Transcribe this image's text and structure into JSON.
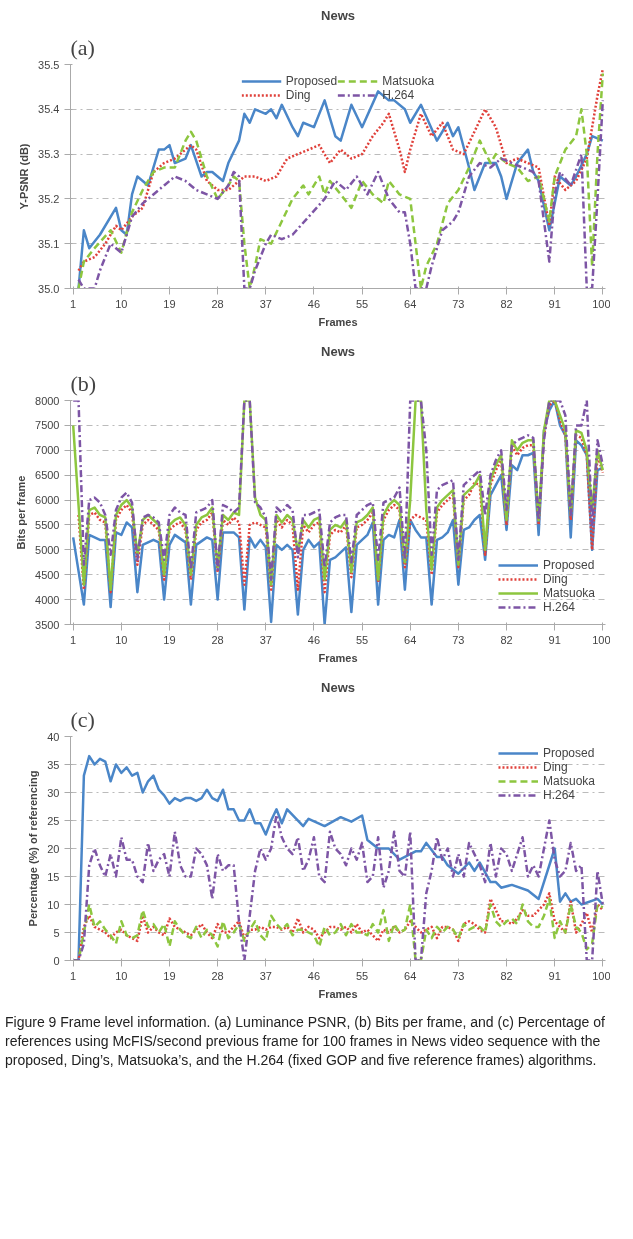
{
  "chart_data": [
    {
      "type": "line",
      "title": "News",
      "xlabel": "Frames",
      "ylabel": "Y-PSNR (dB)",
      "annotations": [
        "(a)"
      ],
      "xlim": [
        0.5,
        100.5
      ],
      "xticks": [
        1,
        10,
        19,
        28,
        37,
        46,
        55,
        64,
        73,
        82,
        91,
        100
      ],
      "ylim": [
        35.0,
        35.5
      ],
      "yticks": [
        {
          "value": 35.0,
          "label": "35.0"
        },
        35.1,
        35.2,
        35.3,
        35.4,
        35.5
      ],
      "grid": "y",
      "legend": "top",
      "series": [
        {
          "name": "Proposed",
          "color": "#4a86c8",
          "line_style": "solid",
          "x": [
            2,
            3,
            4,
            6,
            9,
            10,
            11,
            12,
            13,
            15,
            17,
            18,
            19,
            20,
            22,
            23,
            25,
            26,
            27,
            29,
            30,
            32,
            33,
            34,
            35,
            37,
            38,
            39,
            40,
            42,
            43,
            44,
            46,
            48,
            50,
            51,
            53,
            55,
            58,
            60,
            61,
            63,
            64,
            66,
            69,
            71,
            72,
            73,
            75,
            76,
            78,
            80,
            81,
            82,
            84,
            86,
            87,
            88,
            90,
            92,
            93,
            94,
            95,
            97,
            98,
            100
          ],
          "values": [
            35.0,
            35.13,
            35.09,
            35.12,
            35.18,
            35.13,
            35.12,
            35.21,
            35.25,
            35.23,
            35.31,
            35.31,
            35.32,
            35.28,
            35.29,
            35.32,
            35.25,
            35.26,
            35.26,
            35.24,
            35.28,
            35.33,
            35.39,
            35.37,
            35.4,
            35.39,
            35.4,
            35.38,
            35.41,
            35.36,
            35.34,
            35.37,
            35.36,
            35.42,
            35.34,
            35.33,
            35.41,
            35.36,
            35.44,
            35.42,
            35.42,
            35.4,
            35.37,
            35.41,
            35.33,
            35.37,
            35.34,
            35.36,
            35.27,
            35.22,
            35.28,
            35.28,
            35.25,
            35.2,
            35.28,
            35.31,
            35.26,
            35.24,
            35.13,
            35.25,
            35.24,
            35.23,
            35.25,
            35.3,
            35.34,
            35.33
          ]
        },
        {
          "name": "Ding",
          "color": "#e0403a",
          "line_style": "dotted",
          "x": [
            2,
            3,
            5,
            7,
            9,
            10,
            12,
            14,
            16,
            18,
            20,
            22,
            23,
            24,
            26,
            28,
            30,
            32,
            33,
            35,
            37,
            39,
            41,
            43,
            45,
            47,
            49,
            51,
            53,
            55,
            57,
            59,
            60,
            62,
            63,
            64,
            66,
            68,
            70,
            72,
            74,
            76,
            78,
            80,
            82,
            84,
            86,
            88,
            90,
            91,
            93,
            95,
            97,
            99,
            100
          ],
          "values": [
            35.04,
            35.06,
            35.07,
            35.1,
            35.14,
            35.13,
            35.16,
            35.18,
            35.26,
            35.28,
            35.29,
            35.31,
            35.32,
            35.31,
            35.24,
            35.22,
            35.22,
            35.24,
            35.25,
            35.25,
            35.24,
            35.25,
            35.29,
            35.3,
            35.31,
            35.32,
            35.28,
            35.31,
            35.29,
            35.3,
            35.34,
            35.37,
            35.39,
            35.31,
            35.26,
            35.31,
            35.39,
            35.34,
            35.37,
            35.31,
            35.3,
            35.35,
            35.4,
            35.36,
            35.28,
            35.29,
            35.28,
            35.27,
            35.14,
            35.25,
            35.22,
            35.24,
            35.29,
            35.43,
            35.49
          ]
        },
        {
          "name": "Matsuoka",
          "color": "#8dc63f",
          "line_style": "dashed",
          "x": [
            2,
            3,
            5,
            8,
            10,
            12,
            14,
            16,
            18,
            20,
            22,
            23,
            24,
            26,
            28,
            30,
            31,
            32,
            33,
            34,
            35,
            36,
            38,
            40,
            42,
            44,
            45,
            47,
            48,
            49,
            51,
            53,
            55,
            57,
            59,
            60,
            62,
            64,
            65,
            66,
            67,
            69,
            71,
            73,
            75,
            77,
            79,
            80,
            82,
            84,
            86,
            88,
            90,
            91,
            93,
            95,
            96,
            97,
            98,
            99,
            100
          ],
          "values": [
            35.0,
            35.06,
            35.09,
            35.13,
            35.08,
            35.17,
            35.22,
            35.26,
            35.27,
            35.27,
            35.33,
            35.35,
            35.33,
            35.25,
            35.2,
            35.23,
            35.25,
            35.24,
            35.1,
            35.0,
            35.05,
            35.11,
            35.1,
            35.15,
            35.2,
            35.23,
            35.21,
            35.25,
            35.21,
            35.24,
            35.21,
            35.18,
            35.24,
            35.21,
            35.19,
            35.24,
            35.21,
            35.2,
            35.1,
            35.0,
            35.05,
            35.1,
            35.19,
            35.22,
            35.27,
            35.33,
            35.28,
            35.3,
            35.28,
            35.27,
            35.24,
            35.25,
            35.15,
            35.25,
            35.31,
            35.34,
            35.4,
            35.3,
            35.05,
            35.3,
            35.48
          ]
        },
        {
          "name": "H.264",
          "color": "#7d55a5",
          "line_style": "dashdot",
          "x": [
            2,
            3,
            5,
            6,
            8,
            10,
            12,
            14,
            16,
            18,
            19,
            20,
            22,
            24,
            26,
            28,
            30,
            31,
            32,
            33,
            34,
            35,
            37,
            38,
            40,
            42,
            45,
            48,
            50,
            52,
            54,
            56,
            58,
            60,
            62,
            63,
            64,
            65,
            67,
            68,
            70,
            72,
            73,
            75,
            77,
            79,
            81,
            83,
            85,
            87,
            88,
            89,
            90,
            91,
            92,
            94,
            96,
            97,
            98,
            99,
            100
          ],
          "values": [
            35.02,
            35.0,
            35.0,
            35.04,
            35.1,
            35.08,
            35.16,
            35.19,
            35.21,
            35.23,
            35.24,
            35.25,
            35.24,
            35.22,
            35.21,
            35.2,
            35.23,
            35.26,
            35.25,
            35.0,
            35.0,
            35.04,
            35.1,
            35.12,
            35.11,
            35.12,
            35.16,
            35.2,
            35.24,
            35.22,
            35.25,
            35.21,
            35.26,
            35.2,
            35.17,
            35.17,
            35.1,
            35.0,
            35.0,
            35.05,
            35.13,
            35.15,
            35.17,
            35.25,
            35.28,
            35.27,
            35.29,
            35.28,
            35.27,
            35.26,
            35.24,
            35.15,
            35.06,
            35.21,
            35.26,
            35.23,
            35.3,
            35.0,
            35.0,
            35.2,
            35.42
          ]
        }
      ]
    },
    {
      "type": "line",
      "title": "News",
      "xlabel": "Frames",
      "ylabel": "Bits per frame",
      "annotations": [
        "(b)"
      ],
      "xlim": [
        0.5,
        100.5
      ],
      "xticks": [
        1,
        10,
        19,
        28,
        37,
        46,
        55,
        64,
        73,
        82,
        91,
        100
      ],
      "ylim": [
        3500,
        8000
      ],
      "yticks": [
        3500,
        4000,
        4500,
        5000,
        5500,
        6000,
        6500,
        7000,
        7500,
        8000
      ],
      "grid": "y",
      "legend": "bottom right",
      "series": [
        {
          "name": "Proposed",
          "color": "#4a86c8",
          "line_style": "solid",
          "x": [
            1,
            3,
            4,
            6,
            7,
            8,
            9,
            10,
            11,
            12,
            13,
            14,
            16,
            17,
            18,
            19,
            20,
            22,
            23,
            24,
            26,
            27,
            28,
            29,
            31,
            32,
            33,
            34,
            35,
            36,
            37,
            38,
            39,
            40,
            41,
            42,
            43,
            44,
            45,
            46,
            47,
            48,
            49,
            50,
            52,
            53,
            54,
            55,
            56,
            57,
            58,
            59,
            60,
            61,
            62,
            63,
            64,
            65,
            66,
            67,
            68,
            69,
            70,
            71,
            72,
            73,
            74,
            75,
            76,
            77,
            78,
            79,
            80,
            81,
            82,
            83,
            84,
            85,
            86,
            87,
            88,
            89,
            90,
            91,
            92,
            93,
            94,
            95,
            96,
            97,
            98,
            99,
            100
          ],
          "values": [
            5250,
            3900,
            5300,
            5200,
            5200,
            3850,
            5350,
            5300,
            5550,
            5450,
            4150,
            5100,
            5200,
            5150,
            4000,
            5100,
            5300,
            5150,
            3900,
            5100,
            5250,
            5200,
            4000,
            5350,
            5350,
            5250,
            3800,
            5250,
            5050,
            5200,
            5050,
            3550,
            5100,
            5000,
            5100,
            5000,
            3700,
            5000,
            5200,
            5050,
            5150,
            3500,
            4800,
            4850,
            5050,
            3750,
            5100,
            5200,
            5300,
            5550,
            3900,
            5200,
            5300,
            5250,
            5600,
            4200,
            5600,
            5400,
            5250,
            5250,
            3900,
            5200,
            5250,
            5350,
            5600,
            4300,
            5400,
            5450,
            5600,
            5700,
            4800,
            6100,
            6300,
            6500,
            5400,
            6700,
            6600,
            6900,
            6900,
            6950,
            5300,
            7400,
            7800,
            8000,
            7500,
            7300,
            5250,
            7200,
            7100,
            6900,
            5000,
            6600,
            6650
          ]
        },
        {
          "name": "Ding",
          "color": "#e0403a",
          "line_style": "dotted",
          "x": [
            2,
            3,
            4,
            5,
            6,
            7,
            8,
            9,
            10,
            11,
            12,
            13,
            14,
            15,
            16,
            17,
            18,
            19,
            20,
            21,
            22,
            23,
            24,
            25,
            26,
            27,
            28,
            29,
            30,
            31,
            32,
            33,
            34,
            35,
            36,
            37,
            38,
            39,
            40,
            41,
            42,
            43,
            44,
            45,
            46,
            47,
            48,
            49,
            50,
            51,
            52,
            53,
            54,
            55,
            56,
            57,
            58,
            59,
            60,
            61,
            62,
            63,
            64,
            65,
            66,
            67,
            68,
            69,
            70,
            71,
            72,
            73,
            74,
            75,
            76,
            77,
            78,
            79,
            80,
            81,
            82,
            83,
            84,
            85,
            86,
            87,
            88,
            89,
            90,
            91,
            92,
            93,
            94,
            95,
            96,
            97,
            98,
            99,
            100
          ],
          "values": [
            5700,
            4200,
            5700,
            5750,
            5600,
            5550,
            4150,
            5600,
            5800,
            5900,
            5750,
            4700,
            5500,
            5600,
            5500,
            5400,
            4400,
            5400,
            5500,
            5550,
            5400,
            4400,
            5400,
            5550,
            5600,
            5750,
            4550,
            5600,
            5500,
            5650,
            5550,
            4300,
            5500,
            5550,
            5500,
            5450,
            4200,
            5600,
            5450,
            5600,
            5500,
            4200,
            5500,
            5350,
            5500,
            5550,
            4150,
            5300,
            5400,
            5350,
            5500,
            4450,
            5450,
            5500,
            5600,
            5750,
            4350,
            5600,
            5800,
            5900,
            5800,
            4650,
            5600,
            5700,
            5650,
            5600,
            4500,
            5750,
            5900,
            6000,
            6100,
            4650,
            6000,
            6100,
            6350,
            6300,
            4900,
            6300,
            6600,
            6800,
            5500,
            7100,
            6900,
            7050,
            7100,
            7100,
            5500,
            7300,
            7900,
            8000,
            7600,
            7300,
            5600,
            7300,
            7250,
            6900,
            5000,
            6900,
            6550
          ]
        },
        {
          "name": "Matsuoka",
          "color": "#8dc63f",
          "line_style": "solid",
          "x": [
            1,
            2,
            3,
            4,
            5,
            6,
            7,
            8,
            9,
            10,
            11,
            12,
            13,
            14,
            15,
            16,
            17,
            18,
            19,
            20,
            21,
            22,
            23,
            24,
            25,
            26,
            27,
            28,
            29,
            30,
            31,
            32,
            33,
            34,
            35,
            36,
            37,
            38,
            39,
            40,
            41,
            42,
            43,
            44,
            45,
            46,
            47,
            48,
            49,
            50,
            51,
            52,
            53,
            54,
            55,
            56,
            57,
            58,
            59,
            60,
            61,
            62,
            63,
            64,
            65,
            66,
            67,
            68,
            69,
            70,
            71,
            72,
            73,
            74,
            75,
            76,
            77,
            78,
            79,
            80,
            81,
            82,
            83,
            84,
            85,
            86,
            87,
            88,
            89,
            90,
            91,
            92,
            93,
            94,
            95,
            96,
            97,
            98,
            99,
            100
          ],
          "values": [
            7500,
            5900,
            4300,
            5800,
            5850,
            5700,
            5650,
            4200,
            5700,
            5900,
            6000,
            5850,
            4900,
            5600,
            5700,
            5600,
            5500,
            4500,
            5500,
            5600,
            5650,
            5500,
            4500,
            5500,
            5650,
            5700,
            5850,
            4650,
            5700,
            5600,
            5750,
            5700,
            8000,
            8000,
            6050,
            5700,
            5600,
            4300,
            5700,
            5550,
            5700,
            5600,
            4950,
            5600,
            5450,
            5600,
            5650,
            4400,
            5400,
            5500,
            5450,
            5600,
            4550,
            5550,
            5600,
            5700,
            5850,
            4400,
            5700,
            5900,
            6000,
            5900,
            4750,
            6000,
            8000,
            8000,
            5800,
            4600,
            5850,
            6000,
            6100,
            6200,
            4700,
            6100,
            6200,
            6300,
            6500,
            5000,
            6400,
            6700,
            6900,
            5600,
            7200,
            7000,
            7150,
            7200,
            7200,
            5600,
            7400,
            8000,
            8000,
            7700,
            7400,
            5700,
            7400,
            7350,
            7000,
            5800,
            7000,
            6600
          ]
        },
        {
          "name": "H.264",
          "color": "#7d55a5",
          "line_style": "dashdot",
          "x": [
            1,
            2,
            3,
            4,
            5,
            6,
            7,
            8,
            9,
            10,
            11,
            12,
            13,
            14,
            15,
            16,
            17,
            18,
            19,
            20,
            21,
            22,
            23,
            24,
            25,
            26,
            27,
            28,
            29,
            30,
            31,
            32,
            33,
            34,
            35,
            36,
            37,
            38,
            39,
            40,
            41,
            42,
            43,
            44,
            45,
            46,
            47,
            48,
            49,
            50,
            51,
            52,
            53,
            54,
            55,
            56,
            57,
            58,
            59,
            60,
            61,
            62,
            63,
            64,
            65,
            66,
            67,
            68,
            69,
            70,
            71,
            72,
            73,
            74,
            75,
            76,
            77,
            78,
            79,
            80,
            81,
            82,
            83,
            84,
            85,
            86,
            87,
            88,
            89,
            90,
            91,
            92,
            93,
            94,
            95,
            96,
            97,
            98,
            99,
            100
          ],
          "values": [
            8000,
            8000,
            4700,
            6000,
            6050,
            5950,
            5700,
            4900,
            5800,
            6050,
            6150,
            5950,
            4800,
            5650,
            5700,
            5650,
            5550,
            4800,
            5700,
            5850,
            5750,
            5700,
            4600,
            5750,
            5800,
            5850,
            6000,
            4600,
            5900,
            5850,
            5750,
            5850,
            8000,
            8000,
            5950,
            5850,
            5650,
            4400,
            5850,
            5750,
            5900,
            5800,
            4850,
            5700,
            5700,
            5750,
            5800,
            4650,
            5550,
            5650,
            5700,
            5700,
            4750,
            5700,
            5800,
            5900,
            5950,
            4800,
            5950,
            6000,
            6050,
            6250,
            4800,
            8000,
            8000,
            8000,
            7000,
            4900,
            6200,
            6300,
            6350,
            6400,
            4800,
            6300,
            6400,
            6500,
            6600,
            5700,
            6500,
            6800,
            7000,
            5800,
            7100,
            7200,
            7250,
            7300,
            7250,
            5600,
            7200,
            8000,
            8000,
            8000,
            7700,
            5700,
            7500,
            7500,
            8000,
            5500,
            7200,
            6700
          ]
        }
      ]
    },
    {
      "type": "line",
      "title": "News",
      "xlabel": "Frames",
      "ylabel": "Percentage (%) of referencing",
      "annotations": [
        "(c)",
        "Figure 9 Frame level information. (a) Luminance PSNR, (b) Bits per frame, and (c) Percentage of references using McFIS/second previous frame for 100 frames in News video sequence with the proposed, Ding’s, Matsuoka’s, and the H.264 (fixed GOP and five reference frames) algorithms."
      ],
      "xlim": [
        0.5,
        100.5
      ],
      "xticks": [
        1,
        10,
        19,
        28,
        37,
        46,
        55,
        64,
        73,
        82,
        91,
        100
      ],
      "ylim": [
        0,
        40
      ],
      "yticks": [
        0,
        5,
        10,
        15,
        20,
        25,
        30,
        35,
        40
      ],
      "grid": "y",
      "legend": "top right",
      "series": [
        {
          "name": "Proposed",
          "color": "#4a86c8",
          "line_style": "solid",
          "x": [
            1,
            2,
            3,
            4,
            5,
            6,
            7,
            8,
            9,
            10,
            11,
            12,
            13,
            14,
            15,
            16,
            17,
            18,
            19,
            20,
            21,
            22,
            23,
            24,
            25,
            26,
            27,
            28,
            29,
            30,
            31,
            32,
            33,
            34,
            35,
            36,
            37,
            38,
            39,
            40,
            41,
            44,
            45,
            48,
            51,
            53,
            55,
            56,
            58,
            60,
            62,
            65,
            66,
            67,
            69,
            70,
            71,
            73,
            75,
            76,
            77,
            79,
            80,
            81,
            83,
            86,
            88,
            91,
            92,
            93,
            94,
            95,
            96,
            99,
            100
          ],
          "values": [
            0,
            0,
            33,
            36.5,
            35,
            36,
            35.5,
            32,
            35,
            33.5,
            34.5,
            33,
            33.5,
            30,
            32,
            33,
            30.5,
            29.5,
            28,
            29,
            28.5,
            29,
            29,
            28.5,
            29,
            30.5,
            29,
            28.5,
            30.5,
            27,
            27,
            25,
            25,
            27,
            24.5,
            24.5,
            22.5,
            25,
            27,
            24.5,
            27,
            24,
            25.3,
            24,
            25.6,
            24.8,
            25.9,
            21.5,
            20,
            20,
            18,
            19.5,
            19.5,
            21,
            18.5,
            18.5,
            17,
            15.5,
            17.5,
            16,
            17.5,
            14,
            14,
            13,
            13.5,
            12.5,
            11,
            20,
            10.5,
            12,
            10.5,
            11,
            10,
            11,
            10
          ]
        },
        {
          "name": "Ding",
          "color": "#e0403a",
          "line_style": "dotted",
          "x": [
            1,
            2,
            3,
            4,
            5,
            6,
            7,
            8,
            9,
            10,
            11,
            12,
            13,
            14,
            15,
            16,
            17,
            18,
            19,
            20,
            21,
            22,
            23,
            24,
            25,
            26,
            27,
            28,
            29,
            30,
            31,
            32,
            33,
            34,
            35,
            36,
            37,
            38,
            39,
            40,
            41,
            42,
            43,
            44,
            45,
            46,
            47,
            48,
            49,
            50,
            51,
            52,
            53,
            54,
            55,
            56,
            57,
            58,
            59,
            60,
            61,
            62,
            63,
            64,
            65,
            66,
            67,
            68,
            69,
            70,
            71,
            72,
            73,
            74,
            75,
            76,
            77,
            78,
            79,
            80,
            81,
            82,
            83,
            84,
            85,
            86,
            87,
            88,
            89,
            90,
            91,
            92,
            93,
            94,
            95,
            96,
            97,
            98,
            99,
            100
          ],
          "values": [
            0,
            0,
            6,
            8,
            6,
            5.5,
            5,
            4,
            5,
            5.5,
            4.5,
            4,
            3.5,
            8,
            5,
            6,
            5,
            4.5,
            7.5,
            6,
            5.5,
            5,
            4.5,
            5.5,
            6.5,
            5,
            4,
            6.5,
            5,
            5,
            6,
            7,
            4,
            5.5,
            5.5,
            6,
            5.5,
            6,
            6,
            5.5,
            6,
            5,
            7.5,
            5,
            6,
            5.5,
            4,
            5,
            6,
            6,
            5.5,
            6,
            5,
            6.5,
            5,
            5.5,
            4.5,
            3.5,
            5.5,
            5,
            6,
            5,
            5.5,
            7,
            6,
            5,
            5.5,
            6,
            4,
            6,
            6,
            5.5,
            3.5,
            6.5,
            7,
            6.5,
            5.5,
            5,
            11,
            9,
            7,
            7,
            6.5,
            7.5,
            9,
            8,
            8,
            9,
            10,
            12,
            7,
            6,
            5,
            10.5,
            5,
            6.5,
            8.5,
            5,
            10,
            9
          ]
        },
        {
          "name": "Matsuoka",
          "color": "#8dc63f",
          "line_style": "dashed",
          "x": [
            1,
            2,
            3,
            4,
            5,
            6,
            7,
            8,
            9,
            10,
            11,
            12,
            13,
            14,
            15,
            16,
            17,
            18,
            19,
            20,
            21,
            22,
            23,
            24,
            25,
            26,
            27,
            28,
            29,
            30,
            31,
            32,
            33,
            34,
            35,
            36,
            37,
            38,
            39,
            40,
            41,
            42,
            43,
            44,
            45,
            46,
            47,
            48,
            49,
            50,
            51,
            52,
            53,
            54,
            55,
            56,
            57,
            58,
            59,
            60,
            61,
            62,
            63,
            64,
            65,
            66,
            67,
            68,
            69,
            70,
            71,
            72,
            73,
            74,
            75,
            76,
            77,
            78,
            79,
            80,
            81,
            82,
            83,
            84,
            85,
            86,
            87,
            88,
            89,
            90,
            91,
            92,
            93,
            94,
            95,
            96,
            97,
            98,
            99,
            100
          ],
          "values": [
            0,
            0,
            5,
            10,
            6,
            7,
            5.5,
            4.5,
            3,
            7,
            4.5,
            4,
            4.5,
            9,
            6,
            6.5,
            5,
            6.5,
            2.5,
            7,
            5.5,
            4.5,
            4,
            6,
            4,
            5.5,
            4.5,
            2.5,
            7,
            4,
            5,
            6.5,
            3.5,
            5.5,
            7,
            4.5,
            3.5,
            8,
            6.5,
            5.5,
            6.5,
            4.5,
            5.5,
            5.5,
            5,
            4.5,
            2.5,
            6,
            4.5,
            5,
            6.5,
            4.5,
            6.5,
            5,
            5,
            4.5,
            6.5,
            5,
            9,
            3.5,
            6.5,
            5,
            5.5,
            10,
            0,
            0,
            5.5,
            4,
            6,
            5,
            6,
            5.5,
            4,
            6.5,
            5.5,
            6,
            6,
            5,
            10,
            7,
            6,
            7,
            7.5,
            6.5,
            10,
            7,
            6,
            6,
            8,
            11,
            4,
            7,
            5,
            10,
            6,
            5,
            2,
            3,
            10,
            9.5
          ]
        },
        {
          "name": "H.264",
          "color": "#7d55a5",
          "line_style": "dashdot",
          "x": [
            1,
            2,
            3,
            4,
            5,
            6,
            7,
            8,
            9,
            10,
            11,
            12,
            13,
            14,
            15,
            16,
            17,
            18,
            19,
            20,
            21,
            22,
            23,
            24,
            25,
            26,
            27,
            28,
            29,
            30,
            31,
            32,
            33,
            34,
            35,
            36,
            37,
            38,
            39,
            40,
            41,
            42,
            43,
            44,
            45,
            46,
            47,
            48,
            49,
            50,
            51,
            52,
            53,
            54,
            55,
            56,
            57,
            58,
            59,
            60,
            61,
            62,
            63,
            64,
            65,
            66,
            67,
            68,
            69,
            70,
            71,
            72,
            73,
            74,
            75,
            76,
            77,
            78,
            79,
            80,
            81,
            82,
            83,
            84,
            85,
            86,
            87,
            88,
            89,
            90,
            91,
            92,
            93,
            94,
            95,
            96,
            97,
            98,
            99,
            100
          ],
          "values": [
            0,
            0,
            3,
            17,
            20,
            17,
            15,
            19,
            15,
            22,
            18,
            18,
            15,
            14,
            21,
            16,
            18,
            19,
            15,
            23,
            17,
            15,
            15,
            20,
            19,
            17,
            11,
            19,
            16,
            17,
            17,
            7,
            0,
            8,
            16,
            20,
            18,
            20,
            26,
            22,
            20,
            19,
            22,
            16,
            18,
            22,
            15,
            14,
            23,
            20,
            19,
            17,
            20,
            18,
            21,
            14,
            15,
            22,
            13,
            16,
            23,
            16,
            15,
            23,
            0,
            0,
            12,
            16,
            22,
            18,
            20,
            15,
            19,
            15,
            21,
            19,
            17,
            14,
            21,
            15,
            20,
            19,
            16,
            19,
            22,
            15,
            17,
            15,
            20,
            25,
            18,
            15,
            16,
            21,
            16,
            17,
            0,
            0,
            16,
            10
          ]
        }
      ]
    }
  ]
}
